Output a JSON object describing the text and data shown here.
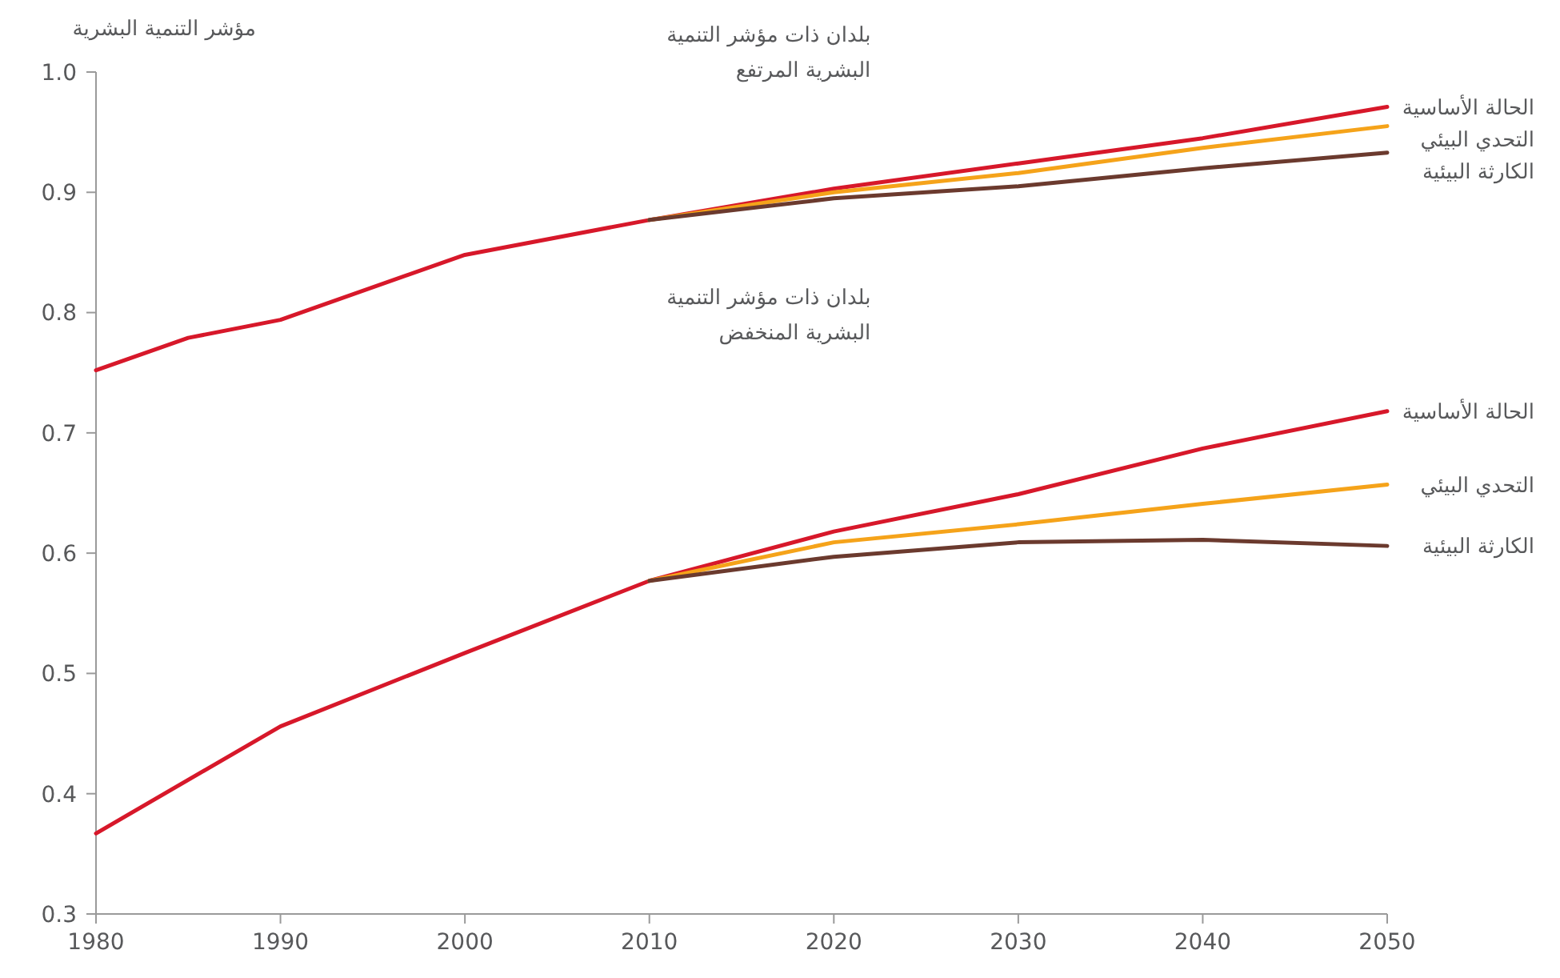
{
  "chart_data": {
    "type": "line",
    "ylabel": "مؤشر التنمية البشرية",
    "xlim": [
      1980,
      2050
    ],
    "xticks": [
      1980,
      1990,
      2000,
      2010,
      2020,
      2030,
      2040,
      2050
    ],
    "ylim": [
      0.3,
      1.0
    ],
    "yticks": [
      0.3,
      0.4,
      0.5,
      0.6,
      0.7,
      0.8,
      0.9,
      {
        "value": 1,
        "label": "1.0"
      }
    ],
    "grid": false,
    "marker": "none",
    "line_style": "solid",
    "series": [
      {
        "name": "الحالة الأساسية",
        "color": "#d7182a",
        "x": [
          1980,
          1985,
          1990,
          2000,
          2010,
          2020,
          2030,
          2040,
          2050
        ],
        "values": [
          0.752,
          0.779,
          0.794,
          0.848,
          0.877,
          0.903,
          0.924,
          0.945,
          0.971
        ]
      },
      {
        "name": "التحدي البيئي",
        "color": "#f5a31a",
        "x": [
          2010,
          2020,
          2030,
          2040,
          2050
        ],
        "values": [
          0.877,
          0.9,
          0.916,
          0.937,
          0.955
        ]
      },
      {
        "name": "الكارثة البيئية",
        "color": "#6b3a2e",
        "x": [
          2010,
          2020,
          2030,
          2040,
          2050
        ],
        "values": [
          0.877,
          0.895,
          0.905,
          0.92,
          0.933
        ]
      },
      {
        "name": "الحالة الأساسية",
        "color": "#d7182a",
        "x": [
          1980,
          1990,
          2000,
          2010,
          2020,
          2030,
          2040,
          2050
        ],
        "values": [
          0.367,
          0.456,
          0.517,
          0.577,
          0.618,
          0.649,
          0.687,
          0.718
        ]
      },
      {
        "name": "التحدي البيئي",
        "color": "#f5a31a",
        "x": [
          2010,
          2020,
          2030,
          2040,
          2050
        ],
        "values": [
          0.577,
          0.609,
          0.624,
          0.641,
          0.657
        ]
      },
      {
        "name": "الكارثة البيئية",
        "color": "#6b3a2e",
        "x": [
          2010,
          2020,
          2030,
          2040,
          2050
        ],
        "values": [
          0.577,
          0.597,
          0.609,
          0.611,
          0.606
        ]
      }
    ],
    "annotations": [
      "بلدان ذات مؤشر التنمية\nالبشرية المرتفع",
      "بلدان ذات مؤشر التنمية\nالبشرية المنخفض"
    ]
  }
}
